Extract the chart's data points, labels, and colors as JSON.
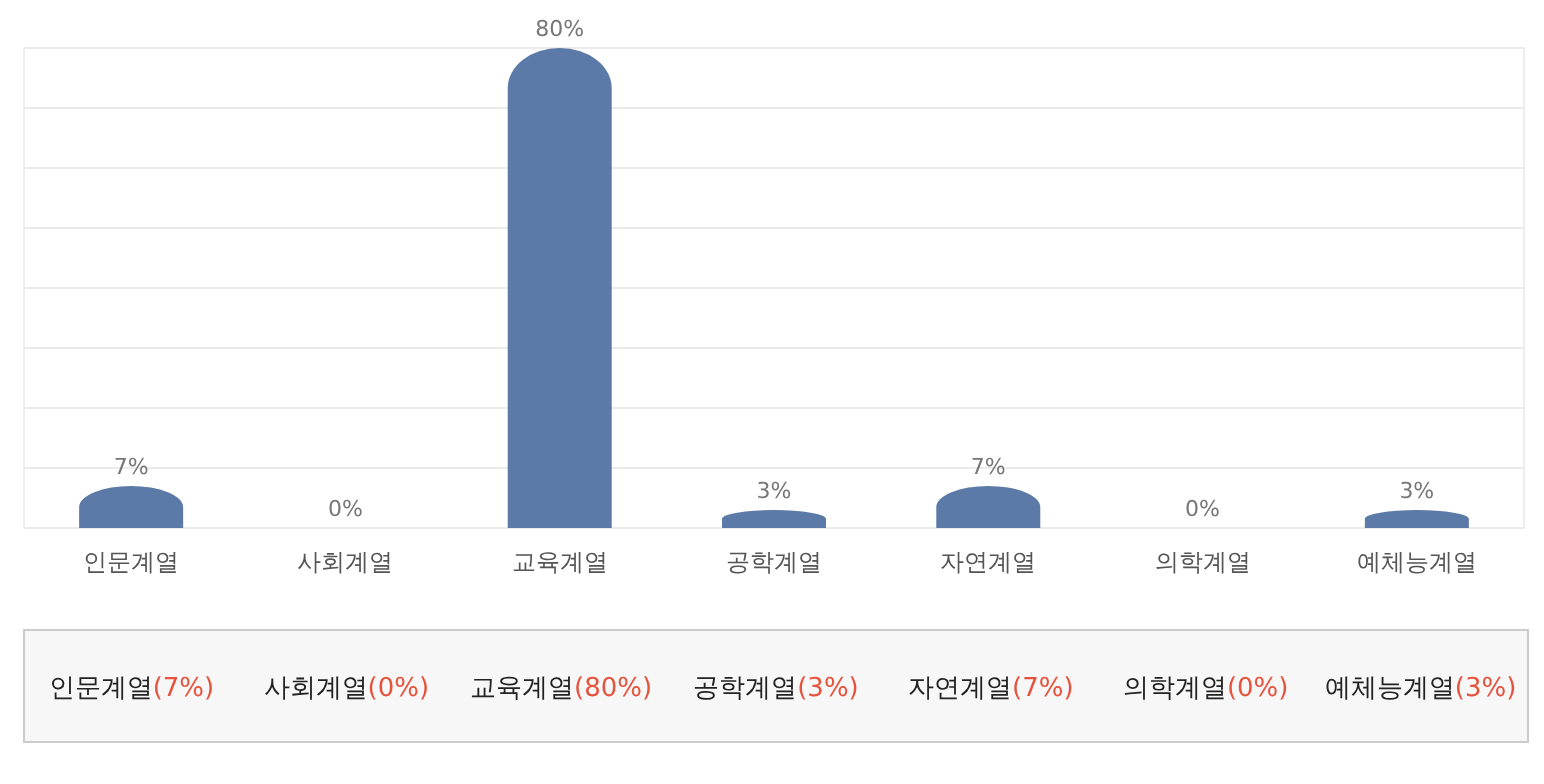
{
  "chart_data": {
    "type": "bar",
    "categories": [
      "인문계열",
      "사회계열",
      "교육계열",
      "공학계열",
      "자연계열",
      "의학계열",
      "예체능계열"
    ],
    "values": [
      7,
      0,
      80,
      3,
      7,
      0,
      3
    ],
    "value_labels": [
      "7%",
      "0%",
      "80%",
      "3%",
      "7%",
      "0%",
      "3%"
    ],
    "annotations": [
      "(7%)",
      "(0%)",
      "(80%)",
      "(3%)",
      "(7%)",
      "(0%)",
      "(3%)"
    ],
    "color": "#5b7aa7",
    "ylim": [
      0,
      80
    ],
    "yticks": [
      {
        "value": 0,
        "label": null
      },
      {
        "value": 10,
        "label": null
      },
      {
        "value": 20,
        "label": null
      },
      {
        "value": 30,
        "label": null
      },
      {
        "value": 40,
        "label": null
      },
      {
        "value": 50,
        "label": null
      },
      {
        "value": 60,
        "label": null
      },
      {
        "value": 70,
        "label": null
      },
      {
        "value": 80,
        "label": null
      }
    ],
    "grid": "y",
    "tick_labels": "x"
  }
}
